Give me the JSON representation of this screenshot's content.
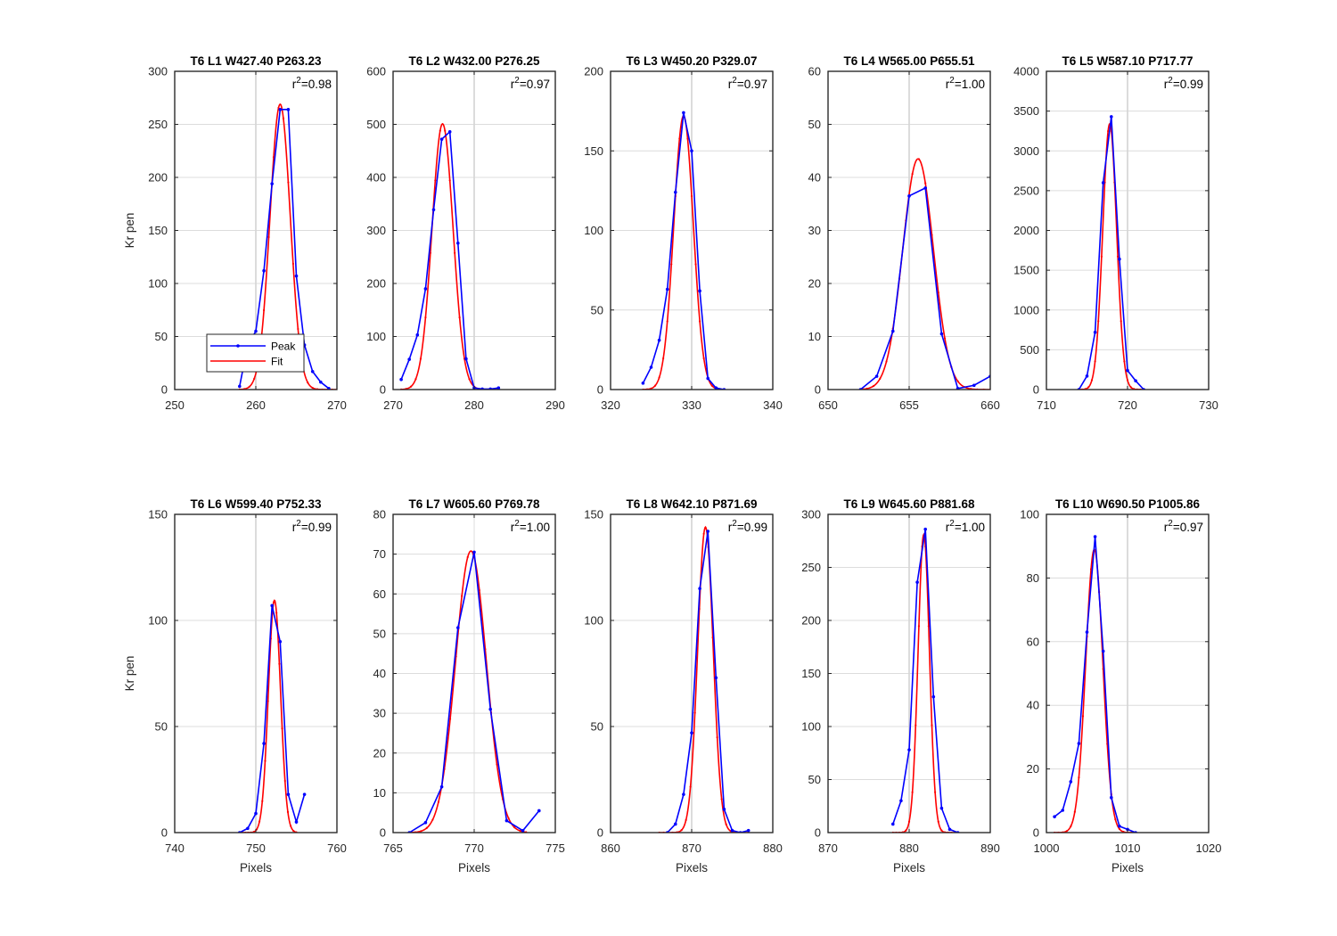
{
  "figure": {
    "background": "#ffffff"
  },
  "colors": {
    "peak": "#0000ff",
    "fit": "#ff0000",
    "grid": "#dcdcdc"
  },
  "legend": {
    "location": "lower-left",
    "entries": [
      "Peak",
      "Fit"
    ]
  },
  "chart_data": [
    {
      "type": "line",
      "title": "T6 L1 W427.40 P263.23",
      "annotation": "0.98",
      "xlabel": "",
      "ylabel": "Kr pen",
      "xlim": [
        250,
        270
      ],
      "ylim": [
        0,
        300
      ],
      "xticks": [
        250,
        260,
        270
      ],
      "yticks": [
        0,
        50,
        100,
        150,
        200,
        250,
        300
      ],
      "ref_x": 260,
      "grid": true,
      "legend": true,
      "series": [
        {
          "name": "Peak",
          "x": [
            258,
            259,
            260,
            261,
            262,
            263,
            264,
            265,
            266,
            267,
            268,
            269
          ],
          "y": [
            3,
            42,
            55,
            112,
            194,
            264,
            264,
            107,
            42,
            17,
            7,
            1
          ]
        },
        {
          "name": "Fit",
          "peak": 269,
          "center": 263.0,
          "sigma": 1.25,
          "range": [
            258,
            270
          ]
        }
      ]
    },
    {
      "type": "line",
      "title": "T6 L2 W432.00 P276.25",
      "annotation": "0.97",
      "xlabel": "",
      "ylabel": "",
      "xlim": [
        270,
        290
      ],
      "ylim": [
        0,
        600
      ],
      "xticks": [
        270,
        280,
        290
      ],
      "yticks": [
        0,
        100,
        200,
        300,
        400,
        500,
        600
      ],
      "ref_x": 280,
      "grid": true,
      "legend": false,
      "series": [
        {
          "name": "Peak",
          "x": [
            271,
            272,
            273,
            274,
            275,
            276,
            277,
            278,
            279,
            280,
            281,
            282,
            283
          ],
          "y": [
            19,
            57,
            103,
            190,
            339,
            472,
            486,
            276,
            58,
            3,
            1,
            1,
            3
          ]
        },
        {
          "name": "Fit",
          "peak": 501,
          "center": 276.1,
          "sigma": 1.3,
          "range": [
            271,
            283
          ]
        }
      ]
    },
    {
      "type": "line",
      "title": "T6 L3 W450.20 P329.07",
      "annotation": "0.97",
      "xlabel": "",
      "ylabel": "",
      "xlim": [
        320,
        340
      ],
      "ylim": [
        0,
        200
      ],
      "xticks": [
        320,
        330,
        340
      ],
      "yticks": [
        0,
        50,
        100,
        150,
        200
      ],
      "ref_x": 330,
      "grid": true,
      "legend": false,
      "series": [
        {
          "name": "Peak",
          "x": [
            324,
            325,
            326,
            327,
            328,
            329,
            330,
            331,
            332,
            333,
            334
          ],
          "y": [
            4,
            14,
            31,
            63,
            124,
            174,
            150,
            62,
            7,
            1,
            0
          ]
        },
        {
          "name": "Fit",
          "peak": 172,
          "center": 329.0,
          "sigma": 1.2,
          "range": [
            324,
            334
          ]
        }
      ]
    },
    {
      "type": "line",
      "title": "T6 L4 W565.00 P655.51",
      "annotation": "1.00",
      "xlabel": "",
      "ylabel": "",
      "xlim": [
        650,
        660
      ],
      "ylim": [
        0,
        60
      ],
      "xticks": [
        650,
        655,
        660
      ],
      "yticks": [
        0,
        10,
        20,
        30,
        40,
        50,
        60
      ],
      "ref_x": 655,
      "grid": true,
      "legend": false,
      "series": [
        {
          "name": "Peak",
          "x": [
            652,
            653,
            654,
            655,
            656,
            657,
            658,
            659,
            660
          ],
          "y": [
            0,
            2.5,
            11,
            36.5,
            38,
            10.5,
            0.2,
            0.8,
            2.5
          ]
        },
        {
          "name": "Fit",
          "peak": 43.5,
          "center": 655.55,
          "sigma": 0.95,
          "range": [
            652,
            660
          ]
        }
      ]
    },
    {
      "type": "line",
      "title": "T6 L5 W587.10 P717.77",
      "annotation": "0.99",
      "xlabel": "",
      "ylabel": "",
      "xlim": [
        710,
        730
      ],
      "ylim": [
        0,
        4000
      ],
      "xticks": [
        710,
        720,
        730
      ],
      "yticks": [
        0,
        500,
        1000,
        1500,
        2000,
        2500,
        3000,
        3500,
        4000
      ],
      "ref_x": 720,
      "grid": true,
      "legend": false,
      "series": [
        {
          "name": "Peak",
          "x": [
            714,
            715,
            716,
            717,
            718,
            719,
            720,
            721,
            722
          ],
          "y": [
            0,
            170,
            720,
            2600,
            3430,
            1640,
            240,
            110,
            0
          ]
        },
        {
          "name": "Fit",
          "peak": 3340,
          "center": 717.8,
          "sigma": 0.85,
          "range": [
            714,
            722
          ]
        }
      ]
    },
    {
      "type": "line",
      "title": "T6 L6 W599.40 P752.33",
      "annotation": "0.99",
      "xlabel": "Pixels",
      "ylabel": "Kr pen",
      "xlim": [
        740,
        760
      ],
      "ylim": [
        0,
        150
      ],
      "xticks": [
        740,
        750,
        760
      ],
      "yticks": [
        0,
        50,
        100,
        150
      ],
      "ref_x": 750,
      "grid": true,
      "legend": false,
      "series": [
        {
          "name": "Peak",
          "x": [
            748,
            749,
            750,
            751,
            752,
            753,
            754,
            755,
            756
          ],
          "y": [
            0,
            2,
            9,
            42,
            107,
            90,
            18,
            5,
            18
          ]
        },
        {
          "name": "Fit",
          "peak": 109.5,
          "center": 752.3,
          "sigma": 0.75,
          "range": [
            748,
            755
          ]
        }
      ]
    },
    {
      "type": "line",
      "title": "T6 L7 W605.60 P769.78",
      "annotation": "1.00",
      "xlabel": "Pixels",
      "ylabel": "",
      "xlim": [
        765,
        775
      ],
      "ylim": [
        0,
        80
      ],
      "xticks": [
        765,
        770,
        775
      ],
      "yticks": [
        0,
        10,
        20,
        30,
        40,
        50,
        60,
        70,
        80
      ],
      "ref_x": null,
      "grid": true,
      "legend": false,
      "series": [
        {
          "name": "Peak",
          "x": [
            766,
            767,
            768,
            769,
            770,
            771,
            772,
            773,
            774
          ],
          "y": [
            0,
            2.5,
            11.5,
            51.5,
            70.5,
            31,
            3,
            0.5,
            5.5
          ]
        },
        {
          "name": "Fit",
          "peak": 70.8,
          "center": 769.8,
          "sigma": 0.95,
          "range": [
            766,
            773.2
          ]
        }
      ]
    },
    {
      "type": "line",
      "title": "T6 L8 W642.10 P871.69",
      "annotation": "0.99",
      "xlabel": "Pixels",
      "ylabel": "",
      "xlim": [
        860,
        880
      ],
      "ylim": [
        0,
        150
      ],
      "xticks": [
        860,
        870,
        880
      ],
      "yticks": [
        0,
        50,
        100,
        150
      ],
      "ref_x": 870,
      "grid": true,
      "legend": false,
      "series": [
        {
          "name": "Peak",
          "x": [
            867,
            868,
            869,
            870,
            871,
            872,
            873,
            874,
            875,
            876,
            877
          ],
          "y": [
            0,
            4,
            18,
            47,
            115,
            142,
            73,
            11,
            1,
            0,
            1
          ]
        },
        {
          "name": "Fit",
          "peak": 144,
          "center": 871.7,
          "sigma": 0.95,
          "range": [
            866,
            877
          ]
        }
      ]
    },
    {
      "type": "line",
      "title": "T6 L9 W645.60 P881.68",
      "annotation": "1.00",
      "xlabel": "Pixels",
      "ylabel": "",
      "xlim": [
        870,
        890
      ],
      "ylim": [
        0,
        300
      ],
      "xticks": [
        870,
        880,
        890
      ],
      "yticks": [
        0,
        50,
        100,
        150,
        200,
        250,
        300
      ],
      "ref_x": 880,
      "grid": true,
      "legend": false,
      "series": [
        {
          "name": "Peak",
          "x": [
            878,
            879,
            880,
            881,
            882,
            883,
            884,
            885,
            886
          ],
          "y": [
            8,
            30,
            78,
            236,
            286,
            128,
            23,
            3,
            0
          ]
        },
        {
          "name": "Fit",
          "peak": 281,
          "center": 881.8,
          "sigma": 0.7,
          "range": [
            878,
            886
          ]
        }
      ]
    },
    {
      "type": "line",
      "title": "T6 L10 W690.50 P1005.86",
      "annotation": "0.97",
      "xlabel": "Pixels",
      "ylabel": "",
      "xlim": [
        1000,
        1020
      ],
      "ylim": [
        0,
        100
      ],
      "xticks": [
        1000,
        1010,
        1020
      ],
      "yticks": [
        0,
        20,
        40,
        60,
        80,
        100
      ],
      "ref_x": 1010,
      "grid": true,
      "legend": false,
      "series": [
        {
          "name": "Peak",
          "x": [
            1001,
            1002,
            1003,
            1004,
            1005,
            1006,
            1007,
            1008,
            1009,
            1010,
            1011
          ],
          "y": [
            5,
            7,
            16,
            28,
            63,
            93,
            57,
            11,
            2,
            1,
            0
          ]
        },
        {
          "name": "Fit",
          "peak": 89,
          "center": 1005.9,
          "sigma": 1.05,
          "range": [
            1001,
            1011
          ]
        }
      ]
    }
  ]
}
